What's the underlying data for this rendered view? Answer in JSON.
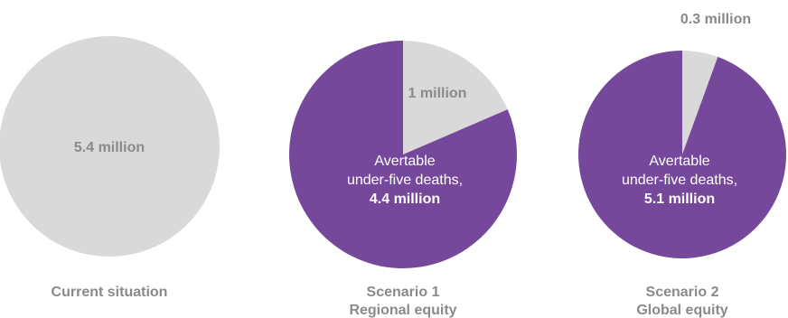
{
  "chart_data": [
    {
      "type": "pie",
      "caption": [
        "Current situation"
      ],
      "slices": [
        {
          "label": "5.4 million",
          "value": 5.4,
          "color": "#d9d9d9"
        }
      ]
    },
    {
      "type": "pie",
      "caption": [
        "Scenario 1",
        "Regional equity"
      ],
      "slices": [
        {
          "label": "1 million",
          "value": 1.0,
          "color": "#d9d9d9"
        },
        {
          "label": [
            "Avertable",
            "under-five deaths,",
            "4.4 million"
          ],
          "value": 4.4,
          "color": "#76489b"
        }
      ]
    },
    {
      "type": "pie",
      "caption": [
        "Scenario 2",
        "Global equity"
      ],
      "slices": [
        {
          "label": "0.3 million",
          "value": 0.3,
          "color": "#d9d9d9"
        },
        {
          "label": [
            "Avertable",
            "under-five deaths,",
            "5.1 million"
          ],
          "value": 5.1,
          "color": "#76489b"
        }
      ]
    }
  ],
  "colors": {
    "grey": "#d9d9d9",
    "purple": "#76489b",
    "label_grey": "#8a8a8a",
    "white": "#ffffff"
  }
}
